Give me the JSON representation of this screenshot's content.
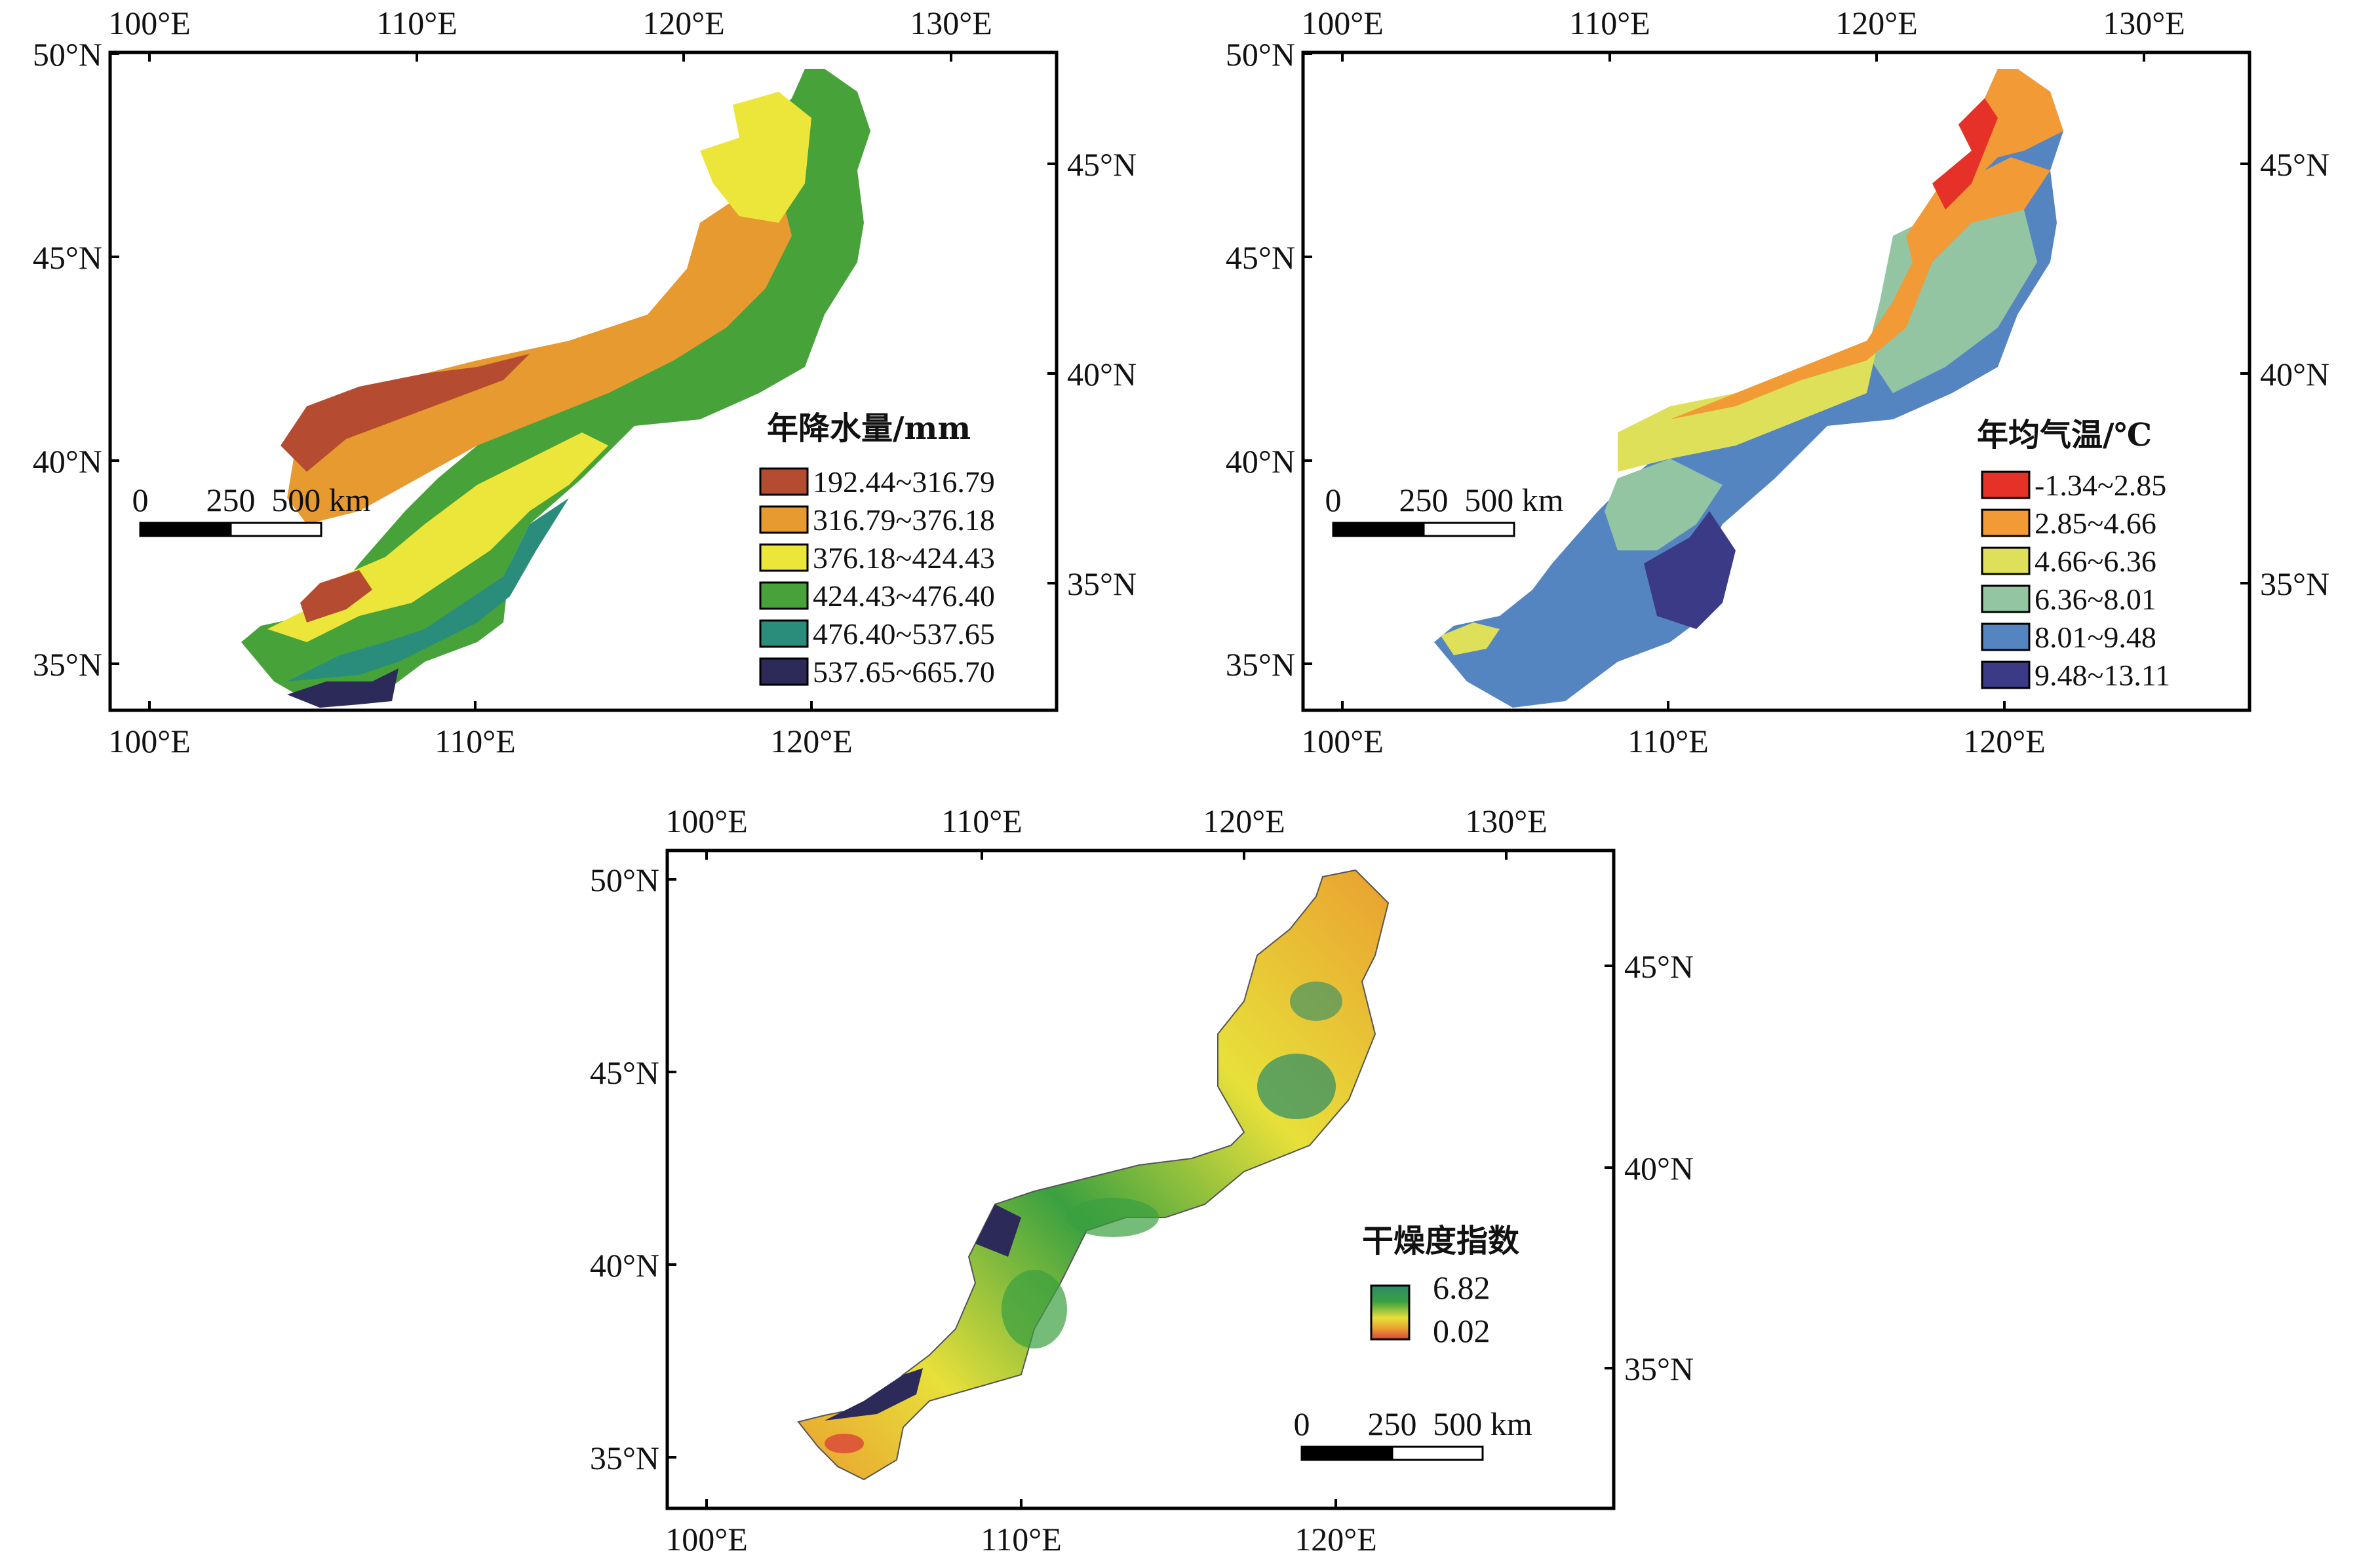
{
  "panels": [
    {
      "id": "precip",
      "top_lon_labels": [
        "100°E",
        "110°E",
        "120°E",
        "130°E"
      ],
      "bottom_lon_labels": [
        "100°E",
        "110°E",
        "120°E"
      ],
      "left_lat_labels": [
        "50°N",
        "45°N",
        "40°N",
        "35°N"
      ],
      "right_lat_labels": [
        "45°N",
        "40°N",
        "35°N"
      ],
      "scale_bar": {
        "labels": [
          "0",
          "250",
          "500 km"
        ]
      },
      "legend": {
        "title": "年降水量/mm",
        "items": [
          {
            "label": "192.44~316.79",
            "color": "#b54b30"
          },
          {
            "label": "316.79~376.18",
            "color": "#e69a30"
          },
          {
            "label": "376.18~424.43",
            "color": "#ede63a"
          },
          {
            "label": "424.43~476.40",
            "color": "#47a23a"
          },
          {
            "label": "476.40~537.65",
            "color": "#2a8c7a"
          },
          {
            "label": "537.65~665.70",
            "color": "#2c2a59"
          }
        ]
      }
    },
    {
      "id": "temp",
      "top_lon_labels": [
        "100°E",
        "110°E",
        "120°E",
        "130°E"
      ],
      "bottom_lon_labels": [
        "100°E",
        "110°E",
        "120°E"
      ],
      "left_lat_labels": [
        "50°N",
        "45°N",
        "40°N",
        "35°N"
      ],
      "right_lat_labels": [
        "45°N",
        "40°N",
        "35°N"
      ],
      "scale_bar": {
        "labels": [
          "0",
          "250",
          "500 km"
        ]
      },
      "legend": {
        "title": "年均气温/℃",
        "items": [
          {
            "label": "-1.34~2.85",
            "color": "#e53127"
          },
          {
            "label": "2.85~4.66",
            "color": "#f29a36"
          },
          {
            "label": "4.66~6.36",
            "color": "#dfe05a"
          },
          {
            "label": "6.36~8.01",
            "color": "#93c5a3"
          },
          {
            "label": "8.01~9.48",
            "color": "#5585c0"
          },
          {
            "label": "9.48~13.11",
            "color": "#3a3a86"
          }
        ]
      }
    },
    {
      "id": "aridity",
      "top_lon_labels": [
        "100°E",
        "110°E",
        "120°E",
        "130°E"
      ],
      "bottom_lon_labels": [
        "100°E",
        "110°E",
        "120°E"
      ],
      "left_lat_labels": [
        "50°N",
        "45°N",
        "40°N",
        "35°N"
      ],
      "right_lat_labels": [
        "45°N",
        "40°N",
        "35°N"
      ],
      "scale_bar": {
        "labels": [
          "0",
          "250",
          "500 km"
        ]
      },
      "legend": {
        "title": "干燥度指数",
        "max": "6.82",
        "min": "0.02",
        "gradient": [
          "#2a8c6a",
          "#3aa040",
          "#e8e03a",
          "#e9a030",
          "#d9453a"
        ]
      }
    }
  ]
}
